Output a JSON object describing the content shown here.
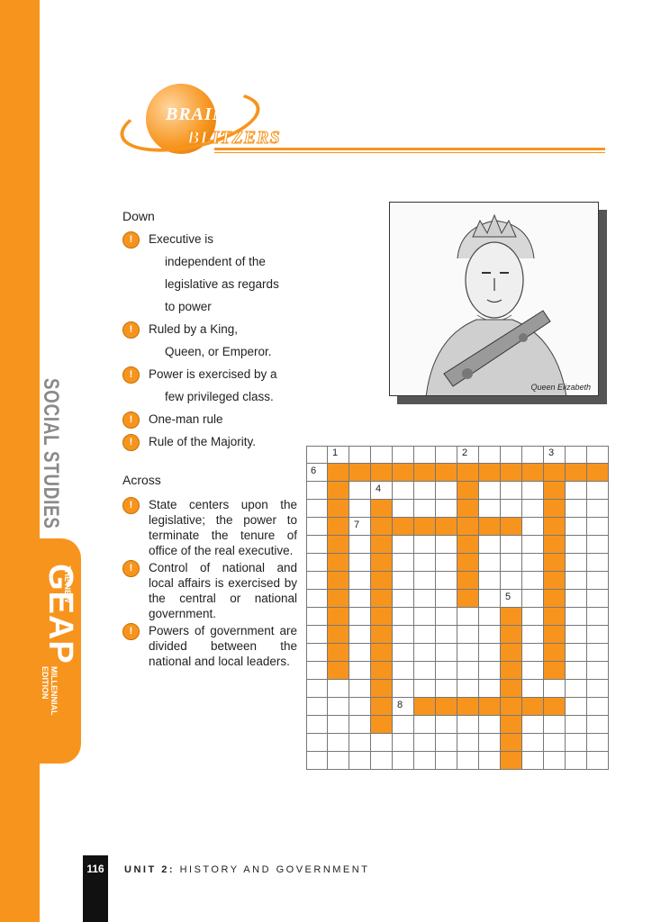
{
  "side": {
    "social": "SOCIAL STUDIES",
    "the_new": "THE NEW",
    "geap": "GEAP",
    "millennial": "MILLENNIAL",
    "edition": "EDITION"
  },
  "logo": {
    "brain": "BRAIN",
    "blitzers": "BLITZERS"
  },
  "down": {
    "heading": "Down",
    "clues": [
      {
        "first": "Executive is",
        "rest": [
          "independent of the",
          "legislative as regards",
          "to power"
        ]
      },
      {
        "first": "Ruled by a King,",
        "rest": [
          "Queen, or Emperor."
        ]
      },
      {
        "first": "Power is exercised by a",
        "rest": [
          "few privileged class."
        ]
      },
      {
        "first": "One-man rule",
        "rest": []
      },
      {
        "first": "Rule of the Majority.",
        "rest": []
      }
    ]
  },
  "across": {
    "heading": "Across",
    "clues": [
      "State centers upon the legislative; the power to terminate the tenure of office of the real executive.",
      "Control of national and local affairs is exercised by the central or national government.",
      "Powers of government are divided between the national and local leaders."
    ]
  },
  "photo": {
    "caption": "Queen Elizabeth"
  },
  "puzzle": {
    "cols": 14,
    "rows": 18,
    "numbers": [
      {
        "n": "1",
        "r": 0,
        "c": 1
      },
      {
        "n": "2",
        "r": 0,
        "c": 7
      },
      {
        "n": "3",
        "r": 0,
        "c": 11
      },
      {
        "n": "6",
        "r": 1,
        "c": 0
      },
      {
        "n": "4",
        "r": 2,
        "c": 3
      },
      {
        "n": "7",
        "r": 4,
        "c": 2
      },
      {
        "n": "5",
        "r": 8,
        "c": 9
      },
      {
        "n": "8",
        "r": 14,
        "c": 4
      }
    ],
    "filled": [
      [
        1,
        1
      ],
      [
        1,
        2
      ],
      [
        1,
        3
      ],
      [
        1,
        4
      ],
      [
        1,
        5
      ],
      [
        1,
        6
      ],
      [
        1,
        7
      ],
      [
        1,
        8
      ],
      [
        1,
        9
      ],
      [
        1,
        10
      ],
      [
        1,
        11
      ],
      [
        1,
        12
      ],
      [
        1,
        13
      ],
      [
        2,
        1
      ],
      [
        3,
        1
      ],
      [
        4,
        1
      ],
      [
        5,
        1
      ],
      [
        6,
        1
      ],
      [
        7,
        1
      ],
      [
        8,
        1
      ],
      [
        9,
        1
      ],
      [
        10,
        1
      ],
      [
        11,
        1
      ],
      [
        12,
        1
      ],
      [
        3,
        3
      ],
      [
        4,
        3
      ],
      [
        5,
        3
      ],
      [
        6,
        3
      ],
      [
        7,
        3
      ],
      [
        8,
        3
      ],
      [
        9,
        3
      ],
      [
        10,
        3
      ],
      [
        11,
        3
      ],
      [
        12,
        3
      ],
      [
        13,
        3
      ],
      [
        14,
        3
      ],
      [
        15,
        3
      ],
      [
        2,
        7
      ],
      [
        3,
        7
      ],
      [
        4,
        7
      ],
      [
        5,
        7
      ],
      [
        6,
        7
      ],
      [
        7,
        7
      ],
      [
        8,
        7
      ],
      [
        4,
        4
      ],
      [
        4,
        5
      ],
      [
        4,
        6
      ],
      [
        4,
        8
      ],
      [
        4,
        9
      ],
      [
        2,
        11
      ],
      [
        3,
        11
      ],
      [
        4,
        11
      ],
      [
        5,
        11
      ],
      [
        6,
        11
      ],
      [
        7,
        11
      ],
      [
        8,
        11
      ],
      [
        9,
        11
      ],
      [
        10,
        11
      ],
      [
        11,
        11
      ],
      [
        12,
        11
      ],
      [
        9,
        9
      ],
      [
        10,
        9
      ],
      [
        11,
        9
      ],
      [
        12,
        9
      ],
      [
        13,
        9
      ],
      [
        14,
        9
      ],
      [
        15,
        9
      ],
      [
        16,
        9
      ],
      [
        17,
        9
      ],
      [
        14,
        5
      ],
      [
        14,
        6
      ],
      [
        14,
        7
      ],
      [
        14,
        8
      ],
      [
        14,
        10
      ],
      [
        14,
        11
      ]
    ]
  },
  "footer": {
    "page": "116",
    "unit_label": "UNIT 2:",
    "unit_title": "HISTORY AND GOVERNMENT"
  },
  "colors": {
    "accent": "#f7941d"
  }
}
